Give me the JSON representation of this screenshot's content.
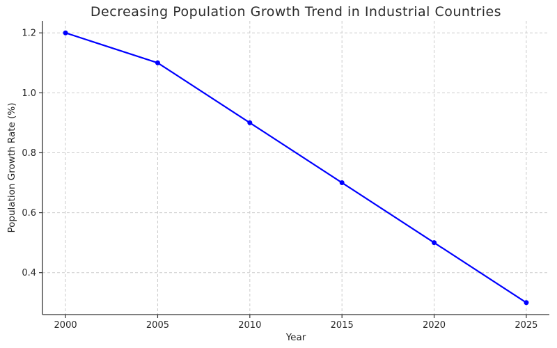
{
  "chart_data": {
    "type": "line",
    "title": "Decreasing Population Growth Trend in Industrial Countries",
    "xlabel": "Year",
    "ylabel": "Population Growth Rate (%)",
    "x": [
      2000,
      2005,
      2010,
      2015,
      2020,
      2025
    ],
    "series": [
      {
        "name": "Population growth rate",
        "values": [
          1.2,
          1.1,
          0.9,
          0.7,
          0.5,
          0.3
        ],
        "color": "#0000ff",
        "marker": "circle"
      }
    ],
    "xticks": [
      2000,
      2005,
      2010,
      2015,
      2020,
      2025
    ],
    "xtick_labels": [
      "2000",
      "2005",
      "2010",
      "2015",
      "2020",
      "2025"
    ],
    "yticks": [
      0.4,
      0.6,
      0.8,
      1.0,
      1.2
    ],
    "ytick_labels": [
      "0.4",
      "0.6",
      "0.8",
      "1.0",
      "1.2"
    ],
    "xlim": [
      1998.75,
      2026.25
    ],
    "ylim": [
      0.26,
      1.24
    ],
    "grid": true,
    "legend": false,
    "colors": {
      "line": "#0000ff",
      "grid": "#cccccc",
      "spine": "#333333",
      "text": "#262626",
      "background": "#ffffff"
    }
  }
}
